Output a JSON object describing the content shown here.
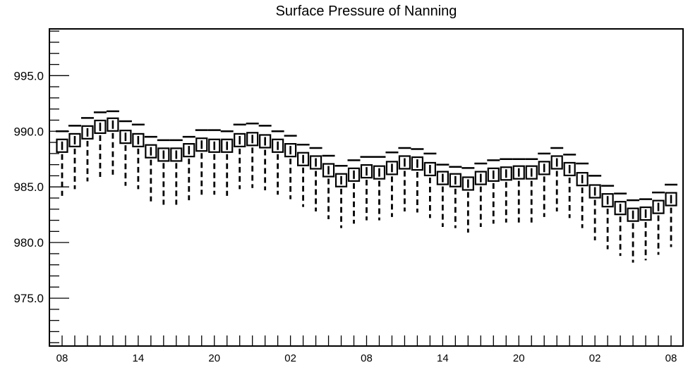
{
  "chart_data": {
    "type": "boxplot",
    "title": "Surface Pressure of Nanning",
    "xlabel": "",
    "ylabel": "",
    "ylim": [
      970.7,
      999.2
    ],
    "y_ticks": [
      975.0,
      980.0,
      985.0,
      990.0,
      995.0
    ],
    "y_tick_labels": [
      "975.0",
      "980.0",
      "985.0",
      "990.0",
      "995.0"
    ],
    "x_tick_labels": [
      {
        "index": 0,
        "label": "08"
      },
      {
        "index": 6,
        "label": "14"
      },
      {
        "index": 12,
        "label": "20"
      },
      {
        "index": 18,
        "label": "02"
      },
      {
        "index": 24,
        "label": "08"
      },
      {
        "index": 30,
        "label": "14"
      },
      {
        "index": 36,
        "label": "20"
      },
      {
        "index": 42,
        "label": "02"
      },
      {
        "index": 48,
        "label": "08"
      }
    ],
    "grid": false,
    "series": [
      {
        "median": [
          988.7,
          989.2,
          989.9,
          990.4,
          990.6,
          989.5,
          989.2,
          988.2,
          987.9,
          987.9,
          988.3,
          988.8,
          988.7,
          988.7,
          989.2,
          989.3,
          989.1,
          988.7,
          988.3,
          987.5,
          987.2,
          986.5,
          985.6,
          986.1,
          986.4,
          986.3,
          986.7,
          987.2,
          987.1,
          986.6,
          985.8,
          985.6,
          985.3,
          985.8,
          986.1,
          986.2,
          986.3,
          986.3,
          986.7,
          987.2,
          986.6,
          985.7,
          984.6,
          983.8,
          983.1,
          982.5,
          982.6,
          983.2,
          983.9
        ],
        "upper": [
          990.0,
          990.5,
          991.2,
          991.7,
          991.8,
          990.9,
          990.6,
          989.5,
          989.2,
          989.2,
          989.5,
          990.1,
          990.1,
          990.0,
          990.6,
          990.7,
          990.5,
          990.0,
          989.6,
          988.8,
          988.5,
          987.8,
          986.9,
          987.4,
          987.7,
          987.7,
          988.1,
          988.5,
          988.4,
          988.0,
          987.0,
          986.8,
          986.7,
          987.1,
          987.4,
          987.5,
          987.5,
          987.5,
          988.0,
          988.5,
          987.9,
          987.1,
          986.0,
          985.1,
          984.4,
          983.8,
          983.9,
          984.5,
          985.2
        ],
        "lower": [
          984.2,
          984.8,
          985.5,
          985.9,
          986.1,
          985.1,
          984.8,
          983.7,
          983.4,
          983.4,
          983.8,
          984.3,
          984.3,
          984.2,
          984.8,
          984.9,
          984.7,
          984.3,
          983.9,
          983.2,
          982.8,
          982.1,
          981.3,
          981.7,
          982.0,
          982.0,
          982.3,
          982.8,
          982.7,
          982.2,
          981.4,
          981.3,
          980.9,
          981.4,
          981.7,
          981.8,
          981.8,
          981.8,
          982.3,
          982.8,
          982.2,
          981.3,
          980.2,
          979.4,
          978.8,
          978.2,
          978.4,
          978.9,
          979.6
        ]
      }
    ]
  }
}
